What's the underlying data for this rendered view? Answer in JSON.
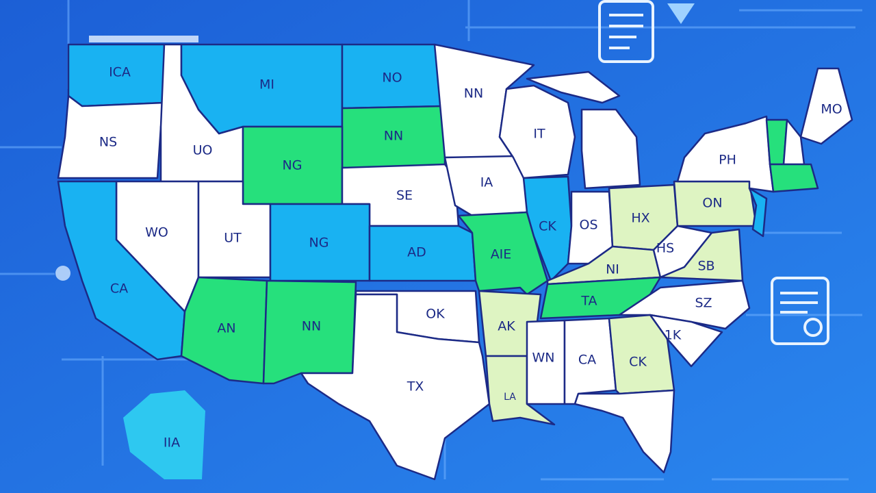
{
  "states": [
    "ICA",
    "MI",
    "NO",
    "NN",
    "NS",
    "UO",
    "NG",
    "NN",
    "IT",
    "WO",
    "UT",
    "NG",
    "SE",
    "IA",
    "CK",
    "OS",
    "HX",
    "ON",
    "PH",
    "MO",
    "CA",
    "AN",
    "NN",
    "AD",
    "AIE",
    "NI",
    "HS",
    "SB",
    "TA",
    "SZ",
    "OK",
    "TX",
    "AK",
    "LA",
    "WN",
    "CA",
    "CK",
    "1K",
    "IIA"
  ]
}
